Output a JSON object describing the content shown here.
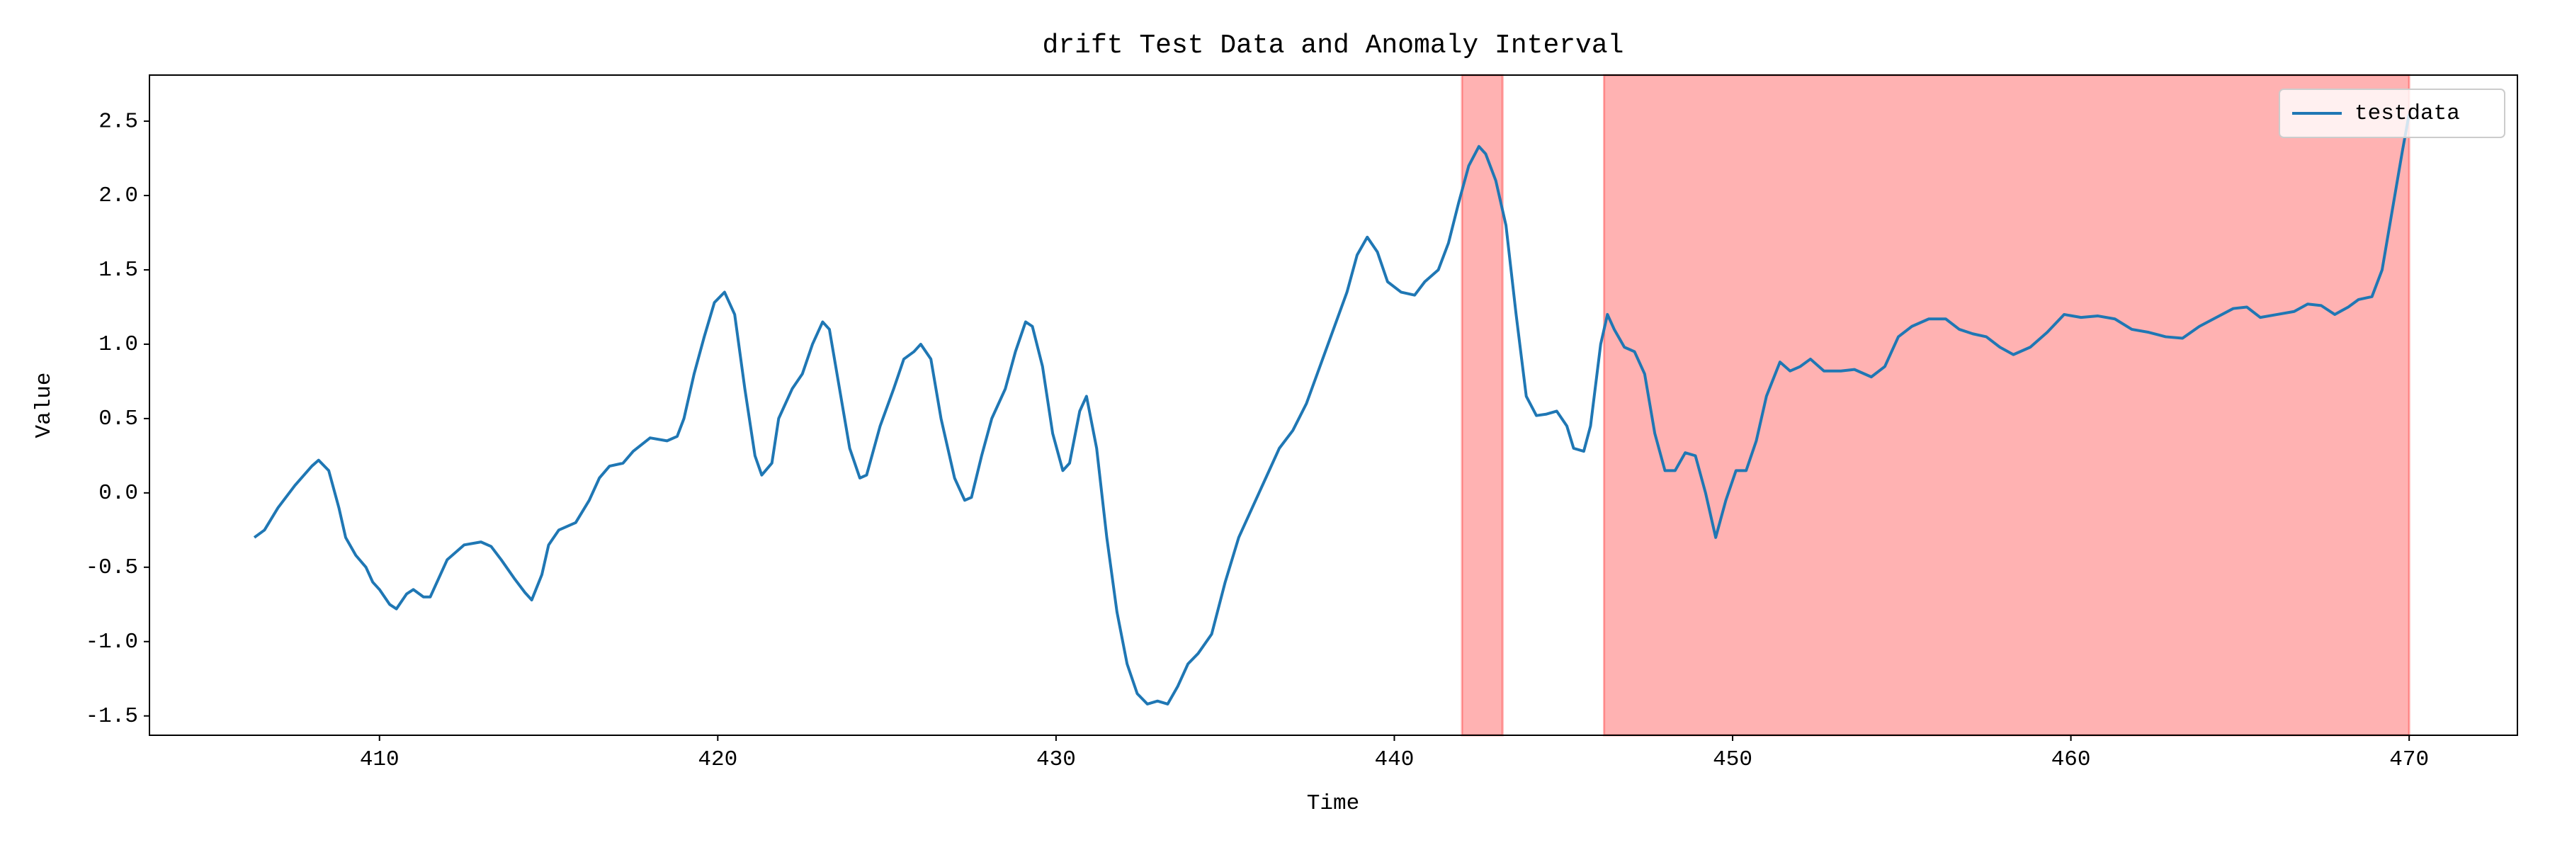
{
  "chart_data": {
    "type": "line",
    "title": "drift Test Data and Anomaly Interval",
    "x_label": "Time",
    "y_label": "Value",
    "x": [
      406.3,
      406.6,
      407,
      407.5,
      408,
      408.2,
      408.5,
      408.8,
      409,
      409.3,
      409.6,
      409.8,
      410,
      410.3,
      410.5,
      410.8,
      411,
      411.3,
      411.5,
      411.8,
      412,
      412.5,
      413,
      413.3,
      413.6,
      414,
      414.3,
      414.5,
      414.8,
      415,
      415.3,
      415.8,
      416.2,
      416.5,
      416.8,
      417.2,
      417.5,
      418,
      418.5,
      418.8,
      419,
      419.3,
      419.6,
      419.9,
      420.2,
      420.5,
      420.8,
      421.1,
      421.3,
      421.6,
      421.8,
      422.2,
      422.5,
      422.8,
      423.1,
      423.3,
      423.6,
      423.9,
      424.2,
      424.4,
      424.8,
      425.2,
      425.5,
      425.8,
      426,
      426.3,
      426.6,
      427,
      427.3,
      427.5,
      427.8,
      428.1,
      428.5,
      428.8,
      429.1,
      429.3,
      429.6,
      429.9,
      430.2,
      430.4,
      430.7,
      430.9,
      431.2,
      431.5,
      431.8,
      432.1,
      432.4,
      432.7,
      433,
      433.3,
      433.6,
      433.9,
      434.2,
      434.6,
      435,
      435.4,
      435.8,
      436.2,
      436.6,
      437,
      437.4,
      437.8,
      438.2,
      438.6,
      438.9,
      439.2,
      439.5,
      439.8,
      440.2,
      440.6,
      440.9,
      441.3,
      441.6,
      441.9,
      442.2,
      442.5,
      442.7,
      443,
      443.3,
      443.6,
      443.9,
      444.2,
      444.5,
      444.8,
      445.1,
      445.3,
      445.6,
      445.8,
      446.1,
      446.3,
      446.5,
      446.8,
      447.1,
      447.4,
      447.7,
      448,
      448.3,
      448.6,
      448.9,
      449.2,
      449.5,
      449.8,
      450.1,
      450.4,
      450.7,
      451,
      451.4,
      451.7,
      452,
      452.3,
      452.7,
      453.2,
      453.6,
      454.1,
      454.5,
      454.9,
      455.3,
      455.8,
      456.3,
      456.7,
      457.1,
      457.5,
      457.9,
      458.3,
      458.8,
      459.3,
      459.8,
      460.3,
      460.8,
      461.3,
      461.8,
      462.3,
      462.8,
      463.3,
      463.8,
      464.3,
      464.8,
      465.2,
      465.6,
      466.1,
      466.6,
      467,
      467.4,
      467.8,
      468.2,
      468.5,
      468.9,
      469.2,
      469.5,
      469.8,
      470
    ],
    "series": [
      {
        "name": "testdata",
        "color": "#1f77b4",
        "values": [
          -0.3,
          -0.25,
          -0.1,
          0.05,
          0.18,
          0.22,
          0.15,
          -0.1,
          -0.3,
          -0.42,
          -0.5,
          -0.6,
          -0.65,
          -0.75,
          -0.78,
          -0.68,
          -0.65,
          -0.7,
          -0.7,
          -0.55,
          -0.45,
          -0.35,
          -0.33,
          -0.36,
          -0.45,
          -0.58,
          -0.67,
          -0.72,
          -0.55,
          -0.35,
          -0.25,
          -0.2,
          -0.05,
          0.1,
          0.18,
          0.2,
          0.28,
          0.37,
          0.35,
          0.38,
          0.5,
          0.8,
          1.05,
          1.28,
          1.35,
          1.2,
          0.7,
          0.25,
          0.12,
          0.2,
          0.5,
          0.7,
          0.8,
          1.0,
          1.15,
          1.1,
          0.7,
          0.3,
          0.1,
          0.12,
          0.45,
          0.7,
          0.9,
          0.95,
          1.0,
          0.9,
          0.5,
          0.1,
          -0.05,
          -0.03,
          0.25,
          0.5,
          0.7,
          0.95,
          1.15,
          1.12,
          0.85,
          0.4,
          0.15,
          0.2,
          0.55,
          0.65,
          0.3,
          -0.3,
          -0.8,
          -1.15,
          -1.35,
          -1.42,
          -1.4,
          -1.42,
          -1.3,
          -1.15,
          -1.08,
          -0.95,
          -0.6,
          -0.3,
          -0.1,
          0.1,
          0.3,
          0.42,
          0.6,
          0.85,
          1.1,
          1.35,
          1.6,
          1.72,
          1.62,
          1.42,
          1.35,
          1.33,
          1.42,
          1.5,
          1.68,
          1.95,
          2.2,
          2.33,
          2.28,
          2.1,
          1.8,
          1.2,
          0.65,
          0.52,
          0.53,
          0.55,
          0.45,
          0.3,
          0.28,
          0.45,
          1.0,
          1.2,
          1.1,
          0.98,
          0.95,
          0.8,
          0.4,
          0.15,
          0.15,
          0.27,
          0.25,
          0.0,
          -0.3,
          -0.05,
          0.15,
          0.15,
          0.35,
          0.65,
          0.88,
          0.82,
          0.85,
          0.9,
          0.82,
          0.82,
          0.83,
          0.78,
          0.85,
          1.05,
          1.12,
          1.17,
          1.17,
          1.1,
          1.07,
          1.05,
          0.98,
          0.93,
          0.98,
          1.08,
          1.2,
          1.18,
          1.19,
          1.17,
          1.1,
          1.08,
          1.05,
          1.04,
          1.12,
          1.18,
          1.24,
          1.25,
          1.18,
          1.2,
          1.22,
          1.27,
          1.26,
          1.2,
          1.25,
          1.3,
          1.32,
          1.5,
          1.9,
          2.3,
          2.55
        ]
      }
    ],
    "anomaly_intervals": [
      [
        442.0,
        443.2
      ],
      [
        446.2,
        470.0
      ]
    ],
    "anomaly_color": "#ff0000",
    "xlim": [
      403.2,
      473.2
    ],
    "ylim": [
      -1.63,
      2.81
    ],
    "xticks": [
      410,
      420,
      430,
      440,
      450,
      460,
      470
    ],
    "yticks": [
      -1.5,
      {
        "value": -1,
        "label": "-1.0"
      },
      -0.5,
      {
        "value": 0,
        "label": "0.0"
      },
      0.5,
      {
        "value": 1,
        "label": "1.0"
      },
      1.5,
      {
        "value": 2,
        "label": "2.0"
      },
      2.5
    ],
    "grid": false,
    "legend": "upper right"
  }
}
